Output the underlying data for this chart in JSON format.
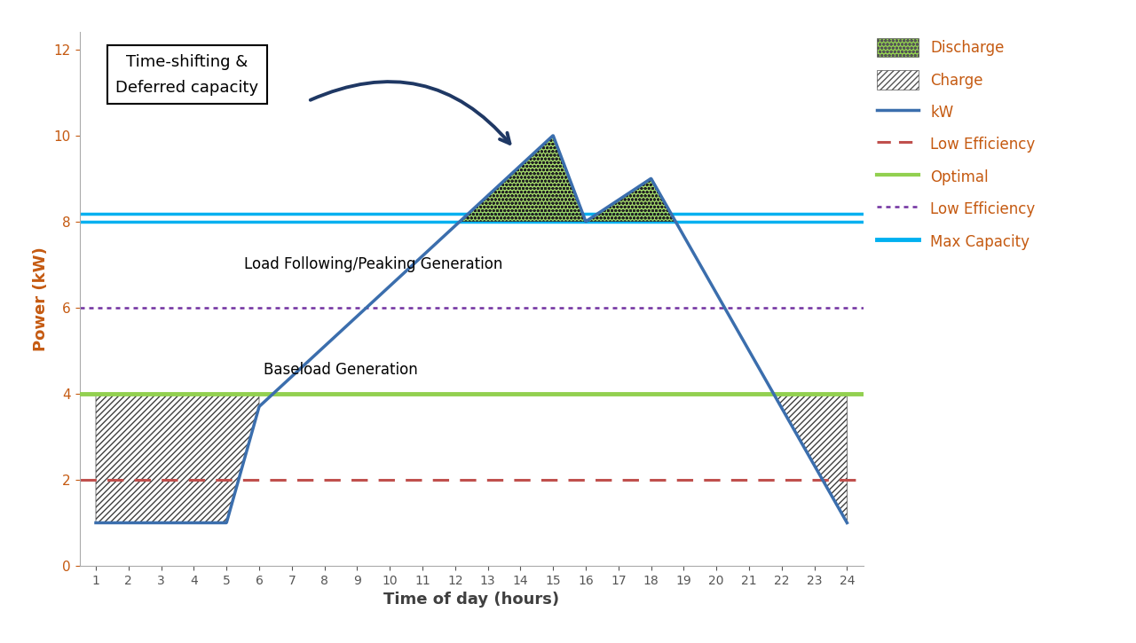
{
  "kw_x": [
    1,
    5,
    6,
    15,
    18,
    24
  ],
  "kw_y": [
    1,
    1,
    3.7,
    10,
    9,
    1
  ],
  "optimal_y": 4,
  "low_eff_y": 2,
  "low_eff_dotted_y": 6,
  "max_cap_y": 8,
  "xlim": [
    0.5,
    24.5
  ],
  "ylim": [
    0,
    12.4
  ],
  "xlabel": "Time of day (hours)",
  "ylabel": "Power (kW)",
  "kw_color": "#3b6ead",
  "optimal_color": "#92d050",
  "low_eff_color": "#c0504d",
  "low_eff_dotted_color": "#7030a0",
  "max_cap_color1": "#00b0f0",
  "max_cap_color2": "#17375e",
  "discharge_color": "#92d050",
  "annotation_text": "Time-shifting &\nDeferred capacity",
  "label_load": "Load Following/Peaking Generation",
  "label_base": "Baseload Generation",
  "xticks": [
    1,
    2,
    3,
    4,
    5,
    6,
    7,
    8,
    9,
    10,
    11,
    12,
    13,
    14,
    15,
    16,
    17,
    18,
    19,
    20,
    21,
    22,
    23,
    24
  ],
  "yticks": [
    0,
    2,
    4,
    6,
    8,
    10,
    12
  ],
  "legend_text_color": "#c55a11",
  "ylabel_color": "#c55a11",
  "xlabel_color": "#404040"
}
